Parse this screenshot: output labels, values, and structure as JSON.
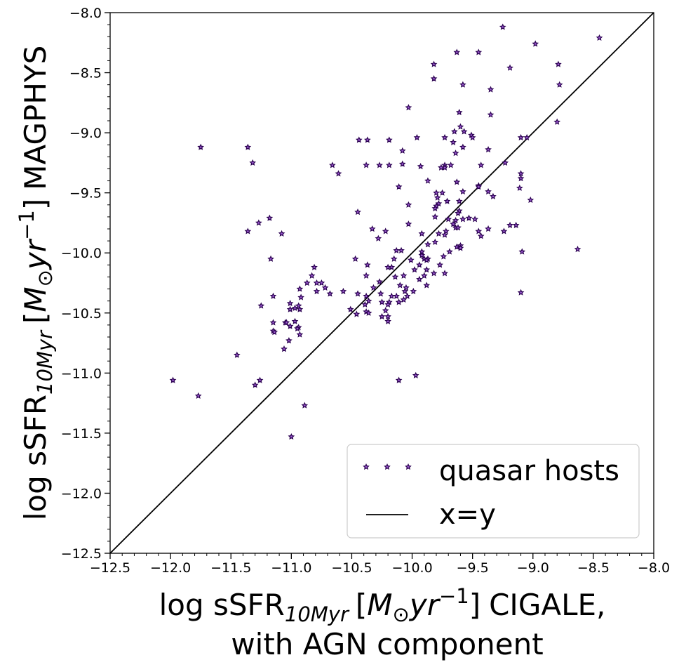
{
  "chart_data": {
    "type": "scatter",
    "title": "",
    "xlabel": {
      "prefix": "log sSFR",
      "subscript": "10Myr",
      "unit_open": "[",
      "unit_M": "M",
      "unit_sun": "⊙",
      "unit_yr": "yr",
      "unit_exp": "−1",
      "unit_close": "]",
      "suffix": "CIGALE,",
      "line2": "with AGN component"
    },
    "ylabel": {
      "prefix": "log sSFR",
      "subscript": "10Myr",
      "unit_open": "[",
      "unit_M": "M",
      "unit_sun": "⊙",
      "unit_yr": "yr",
      "unit_exp": "−1",
      "unit_close": "]",
      "suffix": "MAGPHYS"
    },
    "xlim": [
      -12.5,
      -8.0
    ],
    "ylim": [
      -12.5,
      -8.0
    ],
    "xticks": [
      -12.5,
      -12.0,
      -11.5,
      -11.0,
      -10.5,
      -10.0,
      -9.5,
      -9.0,
      -8.5,
      -8.0
    ],
    "yticks": [
      -12.5,
      -12.0,
      -11.5,
      -11.0,
      -10.5,
      -10.0,
      -9.5,
      -9.0,
      -8.5,
      -8.0
    ],
    "xtick_labels": [
      "−12.5",
      "−12.0",
      "−11.5",
      "−11.0",
      "−10.5",
      "−10.0",
      "−9.5",
      "−9.0",
      "−8.5",
      "−8.0"
    ],
    "ytick_labels": [
      "−12.5",
      "−12.0",
      "−11.5",
      "−11.0",
      "−10.5",
      "−10.0",
      "−9.5",
      "−9.0",
      "−8.5",
      "−8.0"
    ],
    "legend_position": "lower-right",
    "colors": {
      "marker_fill": "#9b59d0",
      "marker_edge": "#2a0050",
      "line": "#000000",
      "legend_edge": "#cccccc"
    },
    "series": [
      {
        "name": "quasar hosts",
        "kind": "scatter",
        "marker": "star",
        "points": [
          [
            -9.25,
            -8.12
          ],
          [
            -8.45,
            -8.21
          ],
          [
            -8.98,
            -8.26
          ],
          [
            -9.63,
            -8.33
          ],
          [
            -9.45,
            -8.33
          ],
          [
            -9.82,
            -8.43
          ],
          [
            -8.79,
            -8.43
          ],
          [
            -9.19,
            -8.46
          ],
          [
            -9.82,
            -8.55
          ],
          [
            -9.58,
            -8.6
          ],
          [
            -8.78,
            -8.6
          ],
          [
            -9.35,
            -8.64
          ],
          [
            -10.03,
            -8.79
          ],
          [
            -9.61,
            -8.83
          ],
          [
            -9.35,
            -8.85
          ],
          [
            -8.8,
            -8.91
          ],
          [
            -9.6,
            -8.95
          ],
          [
            -9.65,
            -8.99
          ],
          [
            -9.57,
            -8.99
          ],
          [
            -9.51,
            -9.02
          ],
          [
            -9.73,
            -9.04
          ],
          [
            -9.5,
            -9.04
          ],
          [
            -9.96,
            -9.04
          ],
          [
            -9.1,
            -9.04
          ],
          [
            -9.05,
            -9.04
          ],
          [
            -10.44,
            -9.06
          ],
          [
            -10.37,
            -9.06
          ],
          [
            -10.19,
            -9.06
          ],
          [
            -9.66,
            -9.08
          ],
          [
            -9.58,
            -9.12
          ],
          [
            -9.37,
            -9.14
          ],
          [
            -10.08,
            -9.15
          ],
          [
            -9.64,
            -9.17
          ],
          [
            -11.75,
            -9.12
          ],
          [
            -11.36,
            -9.12
          ],
          [
            -11.32,
            -9.25
          ],
          [
            -9.23,
            -9.25
          ],
          [
            -10.66,
            -9.27
          ],
          [
            -10.38,
            -9.27
          ],
          [
            -10.27,
            -9.27
          ],
          [
            -10.19,
            -9.27
          ],
          [
            -9.73,
            -9.27
          ],
          [
            -9.68,
            -9.27
          ],
          [
            -9.73,
            -9.29
          ],
          [
            -9.76,
            -9.29
          ],
          [
            -9.93,
            -9.28
          ],
          [
            -9.43,
            -9.27
          ],
          [
            -10.08,
            -9.26
          ],
          [
            -10.61,
            -9.34
          ],
          [
            -9.1,
            -9.34
          ],
          [
            -9.1,
            -9.38
          ],
          [
            -9.87,
            -9.4
          ],
          [
            -9.63,
            -9.41
          ],
          [
            -9.45,
            -9.44
          ],
          [
            -9.45,
            -9.45
          ],
          [
            -10.11,
            -9.45
          ],
          [
            -9.11,
            -9.46
          ],
          [
            -9.58,
            -9.49
          ],
          [
            -9.37,
            -9.49
          ],
          [
            -9.8,
            -9.5
          ],
          [
            -9.75,
            -9.5
          ],
          [
            -9.33,
            -9.53
          ],
          [
            -9.79,
            -9.54
          ],
          [
            -9.02,
            -9.56
          ],
          [
            -9.71,
            -9.57
          ],
          [
            -9.61,
            -9.57
          ],
          [
            -9.78,
            -9.59
          ],
          [
            -10.03,
            -9.6
          ],
          [
            -9.8,
            -9.61
          ],
          [
            -9.81,
            -9.63
          ],
          [
            -9.61,
            -9.65
          ],
          [
            -9.62,
            -9.67
          ],
          [
            -10.45,
            -9.66
          ],
          [
            -9.81,
            -9.7
          ],
          [
            -9.7,
            -9.72
          ],
          [
            -9.48,
            -9.72
          ],
          [
            -11.18,
            -9.71
          ],
          [
            -9.58,
            -9.72
          ],
          [
            -9.64,
            -9.73
          ],
          [
            -9.53,
            -9.71
          ],
          [
            -9.66,
            -9.76
          ],
          [
            -11.27,
            -9.75
          ],
          [
            -10.03,
            -9.76
          ],
          [
            -9.19,
            -9.77
          ],
          [
            -9.14,
            -9.77
          ],
          [
            -9.64,
            -9.79
          ],
          [
            -9.62,
            -9.79
          ],
          [
            -9.37,
            -9.8
          ],
          [
            -10.33,
            -9.8
          ],
          [
            -11.36,
            -9.82
          ],
          [
            -10.22,
            -9.82
          ],
          [
            -9.24,
            -9.82
          ],
          [
            -9.45,
            -9.82
          ],
          [
            -9.72,
            -9.82
          ],
          [
            -9.92,
            -9.84
          ],
          [
            -9.78,
            -9.84
          ],
          [
            -11.08,
            -9.84
          ],
          [
            -9.73,
            -9.85
          ],
          [
            -9.43,
            -9.86
          ],
          [
            -10.28,
            -9.88
          ],
          [
            -9.81,
            -9.91
          ],
          [
            -9.87,
            -9.93
          ],
          [
            -9.6,
            -9.94
          ],
          [
            -9.63,
            -9.95
          ],
          [
            -9.6,
            -9.96
          ],
          [
            -8.63,
            -9.97
          ],
          [
            -9.92,
            -9.99
          ],
          [
            -10.13,
            -9.98
          ],
          [
            -10.09,
            -9.98
          ],
          [
            -9.09,
            -9.99
          ],
          [
            -9.69,
            -9.99
          ],
          [
            -9.92,
            -10.02
          ],
          [
            -9.74,
            -10.03
          ],
          [
            -11.17,
            -10.05
          ],
          [
            -9.9,
            -10.05
          ],
          [
            -9.87,
            -10.05
          ],
          [
            -10.15,
            -10.05
          ],
          [
            -10.47,
            -10.05
          ],
          [
            -10.01,
            -10.06
          ],
          [
            -9.88,
            -10.06
          ],
          [
            -9.77,
            -10.1
          ],
          [
            -10.37,
            -10.1
          ],
          [
            -9.94,
            -10.1
          ],
          [
            -10.2,
            -10.12
          ],
          [
            -10.81,
            -10.12
          ],
          [
            -10.17,
            -10.12
          ],
          [
            -9.88,
            -10.14
          ],
          [
            -9.98,
            -10.14
          ],
          [
            -9.82,
            -10.17
          ],
          [
            -9.73,
            -10.17
          ],
          [
            -10.07,
            -10.19
          ],
          [
            -10.38,
            -10.19
          ],
          [
            -10.83,
            -10.19
          ],
          [
            -9.9,
            -10.19
          ],
          [
            -10.14,
            -10.2
          ],
          [
            -9.94,
            -10.22
          ],
          [
            -10.27,
            -10.24
          ],
          [
            -10.87,
            -10.25
          ],
          [
            -10.79,
            -10.25
          ],
          [
            -10.75,
            -10.25
          ],
          [
            -9.88,
            -10.27
          ],
          [
            -10.1,
            -10.27
          ],
          [
            -10.05,
            -10.29
          ],
          [
            -10.72,
            -10.29
          ],
          [
            -10.32,
            -10.29
          ],
          [
            -10.93,
            -10.3
          ],
          [
            -10.79,
            -10.32
          ],
          [
            -10.57,
            -10.32
          ],
          [
            -10.06,
            -10.32
          ],
          [
            -9.99,
            -10.32
          ],
          [
            -9.1,
            -10.33
          ],
          [
            -10.68,
            -10.34
          ],
          [
            -10.45,
            -10.34
          ],
          [
            -10.26,
            -10.34
          ],
          [
            -10.13,
            -10.36
          ],
          [
            -10.17,
            -10.36
          ],
          [
            -10.38,
            -10.36
          ],
          [
            -10.04,
            -10.36
          ],
          [
            -11.15,
            -10.36
          ],
          [
            -10.92,
            -10.37
          ],
          [
            -10.25,
            -10.41
          ],
          [
            -10.11,
            -10.41
          ],
          [
            -10.07,
            -10.39
          ],
          [
            -10.36,
            -10.4
          ],
          [
            -10.19,
            -10.41
          ],
          [
            -11.01,
            -10.42
          ],
          [
            -10.2,
            -10.43
          ],
          [
            -10.39,
            -10.43
          ],
          [
            -10.94,
            -10.44
          ],
          [
            -11.25,
            -10.44
          ],
          [
            -10.97,
            -10.46
          ],
          [
            -10.93,
            -10.47
          ],
          [
            -11.01,
            -10.47
          ],
          [
            -10.51,
            -10.47
          ],
          [
            -10.38,
            -10.49
          ],
          [
            -10.22,
            -10.48
          ],
          [
            -10.36,
            -10.5
          ],
          [
            -10.46,
            -10.51
          ],
          [
            -10.2,
            -10.53
          ],
          [
            -10.25,
            -10.53
          ],
          [
            -10.97,
            -10.57
          ],
          [
            -10.2,
            -10.57
          ],
          [
            -11.05,
            -10.58
          ],
          [
            -11.15,
            -10.58
          ],
          [
            -11.04,
            -10.58
          ],
          [
            -11.01,
            -10.61
          ],
          [
            -10.94,
            -10.62
          ],
          [
            -10.95,
            -10.63
          ],
          [
            -11.15,
            -10.65
          ],
          [
            -11.14,
            -10.66
          ],
          [
            -10.93,
            -10.68
          ],
          [
            -11.02,
            -10.73
          ],
          [
            -11.06,
            -10.8
          ],
          [
            -11.45,
            -10.85
          ],
          [
            -10.11,
            -11.06
          ],
          [
            -11.98,
            -11.06
          ],
          [
            -11.26,
            -11.06
          ],
          [
            -11.3,
            -11.1
          ],
          [
            -9.97,
            -11.02
          ],
          [
            -11.77,
            -11.19
          ],
          [
            -10.89,
            -11.27
          ],
          [
            -11.0,
            -11.53
          ]
        ]
      },
      {
        "name": "x=y",
        "kind": "line",
        "points": [
          [
            -12.5,
            -12.5
          ],
          [
            -8.0,
            -8.0
          ]
        ]
      }
    ]
  }
}
